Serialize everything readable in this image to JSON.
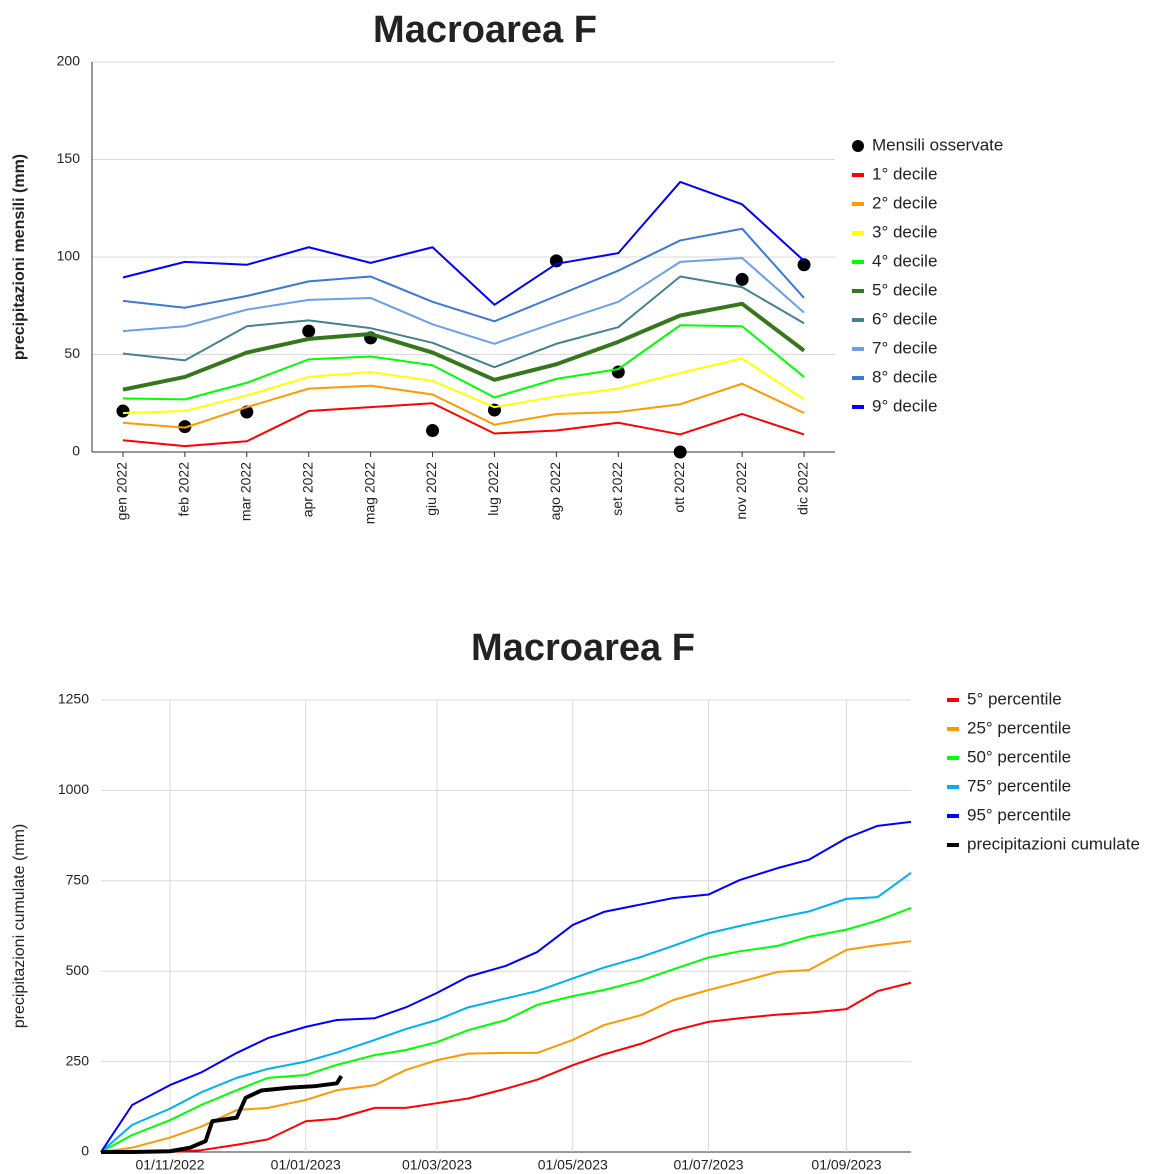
{
  "chart_data": [
    {
      "type": "line",
      "title": "Macroarea F",
      "y_label": "precipitazioni mensili (mm)",
      "categories": [
        "gen 2022",
        "feb 2022",
        "mar 2022",
        "apr 2022",
        "mag 2022",
        "giu 2022",
        "lug 2022",
        "ago 2022",
        "set 2022",
        "ott 2022",
        "nov 2022",
        "dic 2022"
      ],
      "ylim": [
        0,
        200
      ],
      "yticks": [
        0,
        50,
        100,
        150,
        200
      ],
      "grid": true,
      "legend": "right",
      "series": [
        {
          "name": "Mensili osservate",
          "color": "#000000",
          "style": "markers",
          "values": [
            21,
            13,
            20.5,
            62,
            58.5,
            11,
            21.5,
            98,
            41,
            0,
            88.5,
            96
          ]
        },
        {
          "name": "1° decile",
          "color": "#ff0000",
          "values": [
            6,
            3,
            5.5,
            21,
            23,
            25,
            9.5,
            11,
            15,
            9,
            19.5,
            9
          ]
        },
        {
          "name": "2° decile",
          "color": "#ff9900",
          "values": [
            15,
            12.5,
            23,
            32.5,
            34,
            29.5,
            14,
            19.5,
            20.5,
            24.5,
            35,
            20
          ]
        },
        {
          "name": "3° decile",
          "color": "#ffff00",
          "values": [
            20,
            21,
            29,
            38.5,
            41,
            36.5,
            23,
            28.5,
            32.5,
            40.5,
            48,
            27
          ]
        },
        {
          "name": "4° decile",
          "color": "#00ff00",
          "values": [
            27.5,
            27,
            35.5,
            47.5,
            49,
            44.5,
            28,
            37.5,
            42.5,
            65,
            64.5,
            38.5
          ]
        },
        {
          "name": "5° decile",
          "color": "#38761d",
          "line_width": 4,
          "values": [
            32,
            38.5,
            51,
            58,
            60.5,
            51,
            37,
            45,
            56.5,
            70,
            76,
            52
          ]
        },
        {
          "name": "6° decile",
          "color": "#45818e",
          "values": [
            50.5,
            47,
            64.5,
            67.5,
            63.5,
            56,
            43.5,
            55.5,
            64,
            90,
            84.5,
            66
          ]
        },
        {
          "name": "7° decile",
          "color": "#6d9eeb",
          "values": [
            62,
            64.5,
            73,
            78,
            79,
            65.5,
            55.5,
            66.5,
            77,
            97.5,
            99.5,
            71.5
          ]
        },
        {
          "name": "8° decile",
          "color": "#3c78d8",
          "values": [
            77.5,
            74,
            80,
            87.5,
            90,
            77,
            67,
            80,
            93,
            108.5,
            114.5,
            79
          ]
        },
        {
          "name": "9° decile",
          "color": "#0000ff",
          "values": [
            89.5,
            97.5,
            96,
            105,
            97,
            105,
            75.5,
            96.5,
            102,
            138.5,
            127,
            98
          ]
        }
      ]
    },
    {
      "type": "timeline",
      "title": "Macroarea F",
      "y_label": "precipitazioni cumulate (mm)",
      "x": [
        "2022-10-01",
        "2022-10-15",
        "2022-11-01",
        "2022-11-15",
        "2022-12-01",
        "2022-12-15",
        "2023-01-01",
        "2023-01-15",
        "2023-02-01",
        "2023-02-15",
        "2023-03-01",
        "2023-03-15",
        "2023-04-01",
        "2023-04-15",
        "2023-05-01",
        "2023-05-15",
        "2023-06-01",
        "2023-06-15",
        "2023-07-01",
        "2023-07-15",
        "2023-08-01",
        "2023-08-15",
        "2023-09-01",
        "2023-09-15",
        "2023-09-30"
      ],
      "xlim": [
        "2022-10-01",
        "2023-09-30"
      ],
      "xticks": [
        {
          "value": "2022-11-01",
          "label": "01/11/2022"
        },
        {
          "value": "2023-01-01",
          "label": "01/01/2023"
        },
        {
          "value": "2023-03-01",
          "label": "01/03/2023"
        },
        {
          "value": "2023-05-01",
          "label": "01/05/2023"
        },
        {
          "value": "2023-07-01",
          "label": "01/07/2023"
        },
        {
          "value": "2023-09-01",
          "label": "01/09/2023"
        }
      ],
      "ylim": [
        0,
        1250
      ],
      "yticks": [
        0,
        250,
        500,
        750,
        1000,
        1250
      ],
      "grid": true,
      "legend": "right",
      "series": [
        {
          "name": "5° percentile",
          "color": "#ff0000",
          "values": [
            0,
            0,
            0,
            5,
            20,
            35,
            85,
            92,
            122,
            122,
            135,
            148,
            175,
            200,
            240,
            270,
            300,
            335,
            360,
            370,
            380,
            385,
            395,
            445,
            468
          ]
        },
        {
          "name": "25° percentile",
          "color": "#ff9900",
          "values": [
            0,
            12,
            40,
            70,
            116,
            122,
            144,
            171,
            185,
            227,
            254,
            272,
            274,
            274,
            310,
            351,
            379,
            420,
            448,
            470,
            498,
            503,
            559,
            572,
            583
          ]
        },
        {
          "name": "50° percentile",
          "color": "#00ff00",
          "values": [
            0,
            47,
            88,
            130,
            171,
            205,
            213,
            241,
            268,
            282,
            304,
            337,
            365,
            407,
            431,
            448,
            475,
            505,
            538,
            555,
            570,
            595,
            615,
            640,
            675
          ]
        },
        {
          "name": "75° percentile",
          "color": "#00b0f0",
          "values": [
            0,
            75,
            120,
            165,
            205,
            230,
            250,
            275,
            310,
            340,
            365,
            400,
            425,
            445,
            480,
            510,
            540,
            570,
            605,
            625,
            648,
            665,
            700,
            705,
            772
          ]
        },
        {
          "name": "95° percentile",
          "color": "#0000ff",
          "values": [
            0,
            130,
            185,
            220,
            274,
            315,
            346,
            365,
            370,
            400,
            440,
            485,
            515,
            553,
            628,
            664,
            685,
            702,
            712,
            752,
            785,
            808,
            868,
            902,
            913
          ]
        },
        {
          "name": "precipitazioni cumulate",
          "color": "#000000",
          "line_width": 4,
          "x": [
            "2022-10-01",
            "2022-10-15",
            "2022-11-01",
            "2022-11-10",
            "2022-11-17",
            "2022-11-20",
            "2022-12-01",
            "2022-12-05",
            "2022-12-12",
            "2022-12-25",
            "2023-01-05",
            "2023-01-15",
            "2023-01-17"
          ],
          "values": [
            0,
            0,
            2,
            12,
            30,
            85,
            95,
            150,
            170,
            178,
            182,
            190,
            210
          ]
        }
      ]
    }
  ]
}
